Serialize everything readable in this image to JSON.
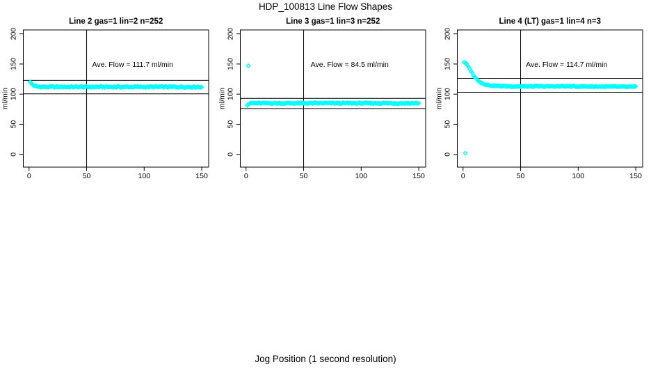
{
  "title": "HDP_100813  Line Flow Shapes",
  "xlabel": "Jog Position (1 second resolution)",
  "colors": {
    "points": "#00ffff",
    "lines": "#000000",
    "text": "#000000",
    "background": "#ffffff"
  },
  "chart_data": [
    {
      "type": "scatter",
      "title": "Line 2 gas=1 lin=2 n=252",
      "annotation": "Ave. Flow =  111.7  ml/min",
      "ave_flow": 111.7,
      "n": 252,
      "ylabel": "ml/min",
      "xlim": [
        0,
        150
      ],
      "ylim": [
        0,
        200
      ],
      "x_ticks": [
        0,
        50,
        100,
        150
      ],
      "y_ticks": [
        0,
        50,
        100,
        150,
        200
      ],
      "vline_x": 50,
      "hlines": [
        122.9,
        100.5
      ],
      "x_start": 1,
      "x_end": 150,
      "x_step": 1,
      "jitter": 1.1,
      "profile": [
        [
          1,
          119.5
        ],
        [
          2,
          118
        ],
        [
          3,
          116
        ],
        [
          4,
          114.5
        ],
        [
          6,
          113
        ],
        [
          9,
          112.3
        ],
        [
          14,
          112
        ],
        [
          150,
          112
        ]
      ],
      "outliers": []
    },
    {
      "type": "scatter",
      "title": "Line 3 gas=1 lin=3 n=252",
      "annotation": "Ave. Flow =  84.5  ml/min",
      "ave_flow": 84.5,
      "n": 252,
      "ylabel": "ml/min",
      "xlim": [
        0,
        150
      ],
      "ylim": [
        0,
        200
      ],
      "x_ticks": [
        0,
        50,
        100,
        150
      ],
      "y_ticks": [
        0,
        50,
        100,
        150,
        200
      ],
      "vline_x": 50,
      "hlines": [
        93.0,
        76.1
      ],
      "x_start": 1,
      "x_end": 150,
      "x_step": 1,
      "jitter": 1.0,
      "profile": [
        [
          1,
          82
        ],
        [
          2,
          83.5
        ],
        [
          3,
          84.5
        ],
        [
          5,
          85
        ],
        [
          150,
          85
        ]
      ],
      "outliers": [
        [
          2,
          147
        ]
      ]
    },
    {
      "type": "scatter",
      "title": "Line 4 (LT) gas=1 lin=4 n=3",
      "annotation": "Ave. Flow =  114.7  ml/min",
      "ave_flow": 114.7,
      "n": 3,
      "ylabel": "ml/min",
      "xlim": [
        0,
        150
      ],
      "ylim": [
        0,
        200
      ],
      "x_ticks": [
        0,
        50,
        100,
        150
      ],
      "y_ticks": [
        0,
        50,
        100,
        150,
        200
      ],
      "vline_x": 50,
      "hlines": [
        126.2,
        103.2
      ],
      "x_start": 1,
      "x_end": 150,
      "x_step": 1,
      "jitter": 0.9,
      "profile": [
        [
          1,
          153
        ],
        [
          2,
          152
        ],
        [
          3,
          150
        ],
        [
          4,
          147
        ],
        [
          5,
          144
        ],
        [
          6,
          141
        ],
        [
          7,
          138
        ],
        [
          8,
          135
        ],
        [
          9,
          132
        ],
        [
          10,
          129
        ],
        [
          11,
          127
        ],
        [
          12,
          125
        ],
        [
          13,
          123
        ],
        [
          14,
          121.5
        ],
        [
          15,
          120
        ],
        [
          16,
          119
        ],
        [
          17,
          118
        ],
        [
          18,
          117
        ],
        [
          19,
          116.5
        ],
        [
          20,
          116
        ],
        [
          22,
          115
        ],
        [
          25,
          114.2
        ],
        [
          30,
          113.5
        ],
        [
          40,
          113
        ],
        [
          60,
          112.8
        ],
        [
          90,
          113
        ],
        [
          120,
          112.5
        ],
        [
          150,
          112
        ]
      ],
      "outliers": [
        [
          2,
          2
        ]
      ]
    }
  ]
}
